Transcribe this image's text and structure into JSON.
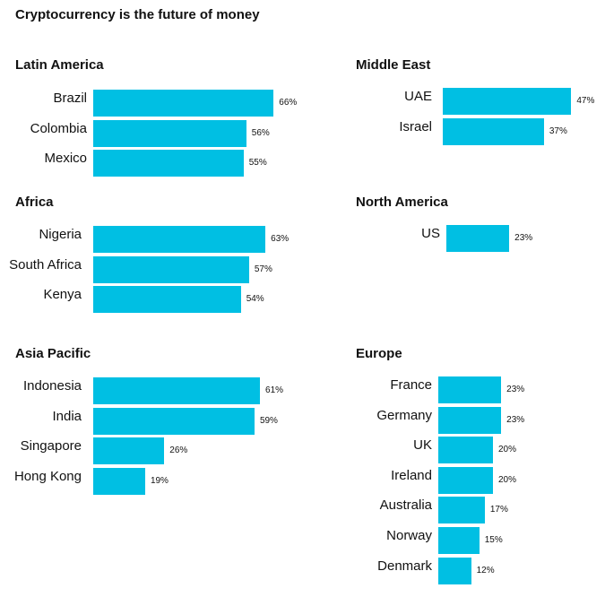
{
  "title": "Cryptocurrency is the future of money",
  "colors": {
    "bar": "#00bfe3"
  },
  "chart_data": [
    {
      "type": "bar",
      "orientation": "horizontal",
      "title": "Latin America",
      "categories": [
        "Brazil",
        "Colombia",
        "Mexico"
      ],
      "values": [
        66,
        56,
        55
      ],
      "value_labels": [
        "66%",
        "56%",
        "55%"
      ]
    },
    {
      "type": "bar",
      "orientation": "horizontal",
      "title": "Middle East",
      "categories": [
        "UAE",
        "Israel"
      ],
      "values": [
        47,
        37
      ],
      "value_labels": [
        "47%",
        "37%"
      ]
    },
    {
      "type": "bar",
      "orientation": "horizontal",
      "title": "Africa",
      "categories": [
        "Nigeria",
        "South Africa",
        "Kenya"
      ],
      "values": [
        63,
        57,
        54
      ],
      "value_labels": [
        "63%",
        "57%",
        "54%"
      ]
    },
    {
      "type": "bar",
      "orientation": "horizontal",
      "title": "North America",
      "categories": [
        "US"
      ],
      "values": [
        23
      ],
      "value_labels": [
        "23%"
      ]
    },
    {
      "type": "bar",
      "orientation": "horizontal",
      "title": "Asia Pacific",
      "categories": [
        "Indonesia",
        "India",
        "Singapore",
        "Hong Kong"
      ],
      "values": [
        61,
        59,
        26,
        19
      ],
      "value_labels": [
        "61%",
        "59%",
        "26%",
        "19%"
      ]
    },
    {
      "type": "bar",
      "orientation": "horizontal",
      "title": "Europe",
      "categories": [
        "France",
        "Germany",
        "UK",
        "Ireland",
        "Australia",
        "Norway",
        "Denmark"
      ],
      "values": [
        23,
        23,
        20,
        20,
        17,
        15,
        12
      ],
      "value_labels": [
        "23%",
        "23%",
        "20%",
        "20%",
        "17%",
        "15%",
        "12%"
      ]
    }
  ]
}
